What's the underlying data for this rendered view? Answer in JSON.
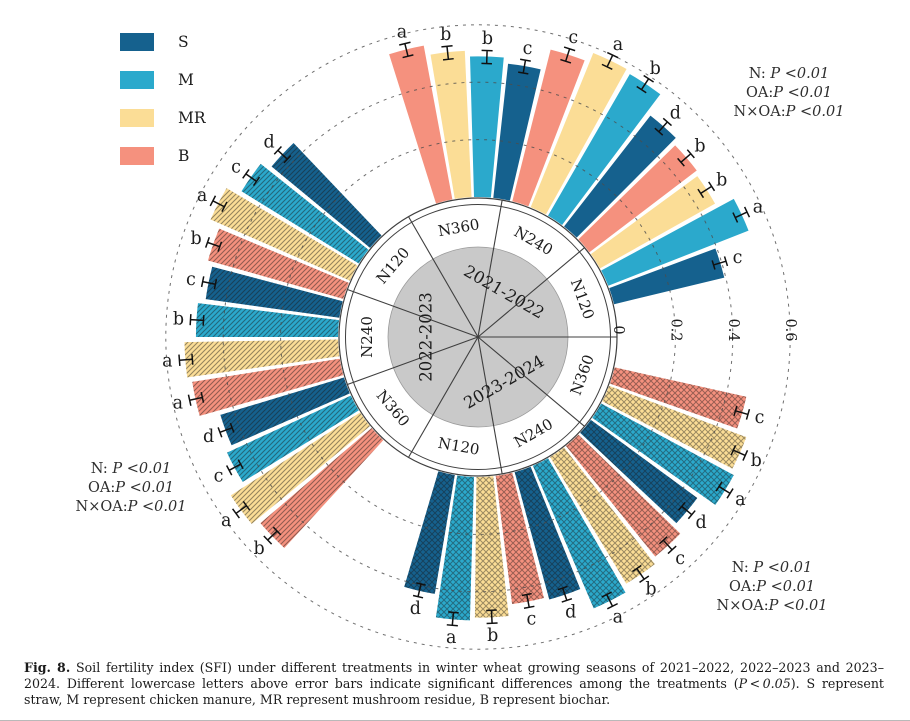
{
  "figure": {
    "caption": {
      "label": "Fig. 8.",
      "text_before_p": " Soil fertility index (SFI) under different treatments in winter wheat growing seasons of 2021–2022, 2022–2023 and 2023–2024. Different lowercase letters above error bars indicate significant differences among the treatments (",
      "p_italic": "P < 0.05",
      "text_after_p": "). S represent straw, M represent chicken manure, MR represent mushroom residue, B represent biochar."
    }
  },
  "chart_data": {
    "type": "bar",
    "layout": "polar",
    "grid": "dashed-circles",
    "radial_axis": {
      "range": [
        0,
        0.6
      ],
      "ticks": [
        {
          "label": "0",
          "value": 0
        },
        {
          "label": "0.2",
          "value": 0.2
        },
        {
          "label": "0.4",
          "value": 0.4
        },
        {
          "label": "0.6",
          "value": 0.6
        }
      ]
    },
    "treatments": [
      {
        "label": "S",
        "color": "#15618e"
      },
      {
        "label": "M",
        "color": "#2ba9cc"
      },
      {
        "label": "MR",
        "color": "#fbdd96"
      },
      {
        "label": "B",
        "color": "#f5917e"
      }
    ],
    "legend_position": "top-left",
    "center_colors": {
      "hub_fill": "#c9c9c9",
      "line": "#3f3f3f"
    },
    "seasons": [
      {
        "label": "2021-2022",
        "hatch": "none",
        "start_angle": -30,
        "groups": [
          {
            "n_level": "N360",
            "bars": [
              {
                "treatment": "B",
                "value": 0.545,
                "letter": "a"
              },
              {
                "treatment": "MR",
                "value": 0.51,
                "letter": "b"
              },
              {
                "treatment": "M",
                "value": 0.49,
                "letter": "b"
              },
              {
                "treatment": "S",
                "value": 0.47,
                "letter": "c"
              }
            ]
          },
          {
            "n_level": "N240",
            "bars": [
              {
                "treatment": "B",
                "value": 0.545,
                "letter": "c"
              },
              {
                "treatment": "MR",
                "value": 0.58,
                "letter": "a"
              },
              {
                "treatment": "M",
                "value": 0.57,
                "letter": "b"
              },
              {
                "treatment": "S",
                "value": 0.49,
                "letter": "d"
              }
            ]
          },
          {
            "n_level": "N120",
            "bars": [
              {
                "treatment": "B",
                "value": 0.47,
                "letter": "b"
              },
              {
                "treatment": "MR",
                "value": 0.46,
                "letter": "b"
              },
              {
                "treatment": "M",
                "value": 0.525,
                "letter": "a"
              },
              {
                "treatment": "S",
                "value": 0.395,
                "letter": "c"
              }
            ]
          }
        ]
      },
      {
        "label": "2023-2024",
        "hatch": "crosshatch",
        "start_angle": 90,
        "groups": [
          {
            "n_level": "N360",
            "bars": [
              {
                "treatment": "B",
                "value": 0.47,
                "letter": "c"
              },
              {
                "treatment": "MR",
                "value": 0.51,
                "letter": "b"
              },
              {
                "treatment": "M",
                "value": 0.525,
                "letter": "a"
              },
              {
                "treatment": "S",
                "value": 0.46,
                "letter": "d"
              }
            ]
          },
          {
            "n_level": "N240",
            "bars": [
              {
                "treatment": "B",
                "value": 0.495,
                "letter": "c"
              },
              {
                "treatment": "MR",
                "value": 0.515,
                "letter": "b"
              },
              {
                "treatment": "M",
                "value": 0.54,
                "letter": "a"
              },
              {
                "treatment": "S",
                "value": 0.46,
                "letter": "d"
              }
            ]
          },
          {
            "n_level": "N120",
            "bars": [
              {
                "treatment": "B",
                "value": 0.45,
                "letter": "c"
              },
              {
                "treatment": "MR",
                "value": 0.49,
                "letter": "b"
              },
              {
                "treatment": "M",
                "value": 0.5,
                "letter": "a"
              },
              {
                "treatment": "S",
                "value": 0.42,
                "letter": "d"
              }
            ]
          }
        ]
      },
      {
        "label": "2022-2023",
        "hatch": "diagonal",
        "start_angle": 210,
        "groups": [
          {
            "n_level": "N360",
            "bars": [
              {
                "treatment": "B",
                "value": 0.51,
                "letter": "b"
              },
              {
                "treatment": "MR",
                "value": 0.535,
                "letter": "a"
              },
              {
                "treatment": "M",
                "value": 0.475,
                "letter": "c"
              },
              {
                "treatment": "S",
                "value": 0.45,
                "letter": "d"
              }
            ]
          },
          {
            "n_level": "N240",
            "bars": [
              {
                "treatment": "B",
                "value": 0.52,
                "letter": "a"
              },
              {
                "treatment": "MR",
                "value": 0.535,
                "letter": "a"
              },
              {
                "treatment": "M",
                "value": 0.495,
                "letter": "b"
              },
              {
                "treatment": "S",
                "value": 0.47,
                "letter": "c"
              }
            ]
          },
          {
            "n_level": "N120",
            "bars": [
              {
                "treatment": "B",
                "value": 0.49,
                "letter": "b"
              },
              {
                "treatment": "MR",
                "value": 0.53,
                "letter": "a"
              },
              {
                "treatment": "M",
                "value": 0.48,
                "letter": "c"
              },
              {
                "treatment": "S",
                "value": 0.445,
                "letter": "d"
              }
            ]
          }
        ]
      }
    ],
    "annotations": [
      {
        "position": "top-right",
        "lines": [
          "N: P <0.01",
          "OA:P <0.01",
          "N×OA:P <0.01"
        ]
      },
      {
        "position": "left",
        "lines": [
          "N: P <0.01",
          "OA:P <0.01",
          "N×OA:P <0.01"
        ]
      },
      {
        "position": "bottom-right",
        "lines": [
          "N: P <0.01",
          "OA:P <0.01",
          "N×OA:P <0.01"
        ]
      }
    ]
  }
}
